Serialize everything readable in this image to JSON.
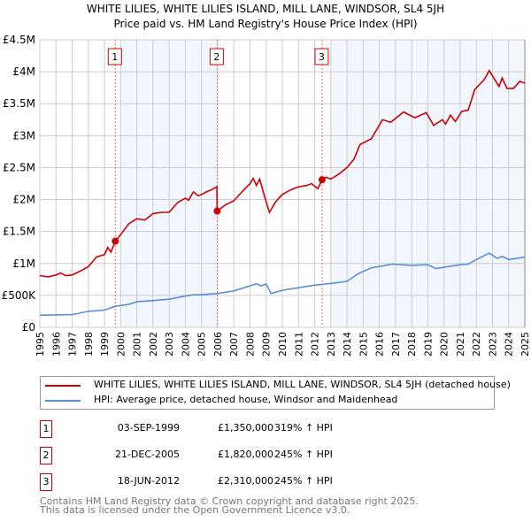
{
  "chart_data": {
    "type": "line",
    "title": "WHITE LILIES, WHITE LILIES ISLAND, MILL LANE, WINDSOR, SL4 5JH",
    "subtitle": "Price paid vs. HM Land Registry's House Price Index (HPI)",
    "xlabel": "",
    "ylabel": "",
    "xlim": [
      1995,
      2025
    ],
    "ylim": [
      0,
      4500000
    ],
    "grid": true,
    "legend_placement": "below",
    "x_ticks": [
      "1995",
      "1996",
      "1997",
      "1998",
      "1999",
      "2000",
      "2001",
      "2002",
      "2003",
      "2004",
      "2005",
      "2006",
      "2007",
      "2008",
      "2009",
      "2010",
      "2011",
      "2012",
      "2013",
      "2014",
      "2015",
      "2016",
      "2017",
      "2018",
      "2019",
      "2020",
      "2021",
      "2022",
      "2023",
      "2024",
      "2025"
    ],
    "y_ticks": [
      {
        "value": 0,
        "label": "£0"
      },
      {
        "value": 500000,
        "label": "£500K"
      },
      {
        "value": 1000000,
        "label": "£1M"
      },
      {
        "value": 1500000,
        "label": "£1.5M"
      },
      {
        "value": 2000000,
        "label": "£2M"
      },
      {
        "value": 2500000,
        "label": "£2.5M"
      },
      {
        "value": 3000000,
        "label": "£3M"
      },
      {
        "value": 3500000,
        "label": "£3.5M"
      },
      {
        "value": 4000000,
        "label": "£4M"
      },
      {
        "value": 4500000,
        "label": "£4.5M"
      }
    ],
    "shaded_ranges": [
      [
        2000,
        2006
      ],
      [
        2013,
        2025
      ]
    ],
    "series": [
      {
        "name": "WHITE LILIES, WHITE LILIES ISLAND, MILL LANE, WINDSOR, SL4 5JH (detached house)",
        "color": "#cc0000",
        "x": [
          1995,
          1995.5,
          1996,
          1996.3,
          1996.6,
          1997,
          1997.5,
          1998,
          1998.5,
          1999,
          1999.2,
          1999.4,
          1999.67,
          2000,
          2000.5,
          2001,
          2001.5,
          2002,
          2002.5,
          2003,
          2003.5,
          2004,
          2004.2,
          2004.5,
          2004.8,
          2005,
          2005.3,
          2005.6,
          2005.95,
          2005.97,
          2006.5,
          2007,
          2007.5,
          2008,
          2008.2,
          2008.4,
          2008.6,
          2008.9,
          2009.2,
          2009.6,
          2010,
          2010.5,
          2011,
          2011.5,
          2011.8,
          2012.2,
          2012.46,
          2012.7,
          2013,
          2013.5,
          2014,
          2014.43,
          2014.8,
          2015.5,
          2016.2,
          2016.7,
          2017.5,
          2018.2,
          2018.9,
          2019.36,
          2019.9,
          2020.1,
          2020.4,
          2020.7,
          2021.1,
          2021.5,
          2021.9,
          2022.5,
          2022.8,
          2023.4,
          2023.6,
          2023.9,
          2024.3,
          2024.7,
          2025
        ],
        "y": [
          810000,
          790000,
          820000,
          850000,
          810000,
          820000,
          880000,
          950000,
          1100000,
          1140000,
          1250000,
          1180000,
          1350000,
          1450000,
          1620000,
          1700000,
          1680000,
          1780000,
          1800000,
          1800000,
          1950000,
          2020000,
          1990000,
          2120000,
          2060000,
          2080000,
          2120000,
          2150000,
          2200000,
          1820000,
          1920000,
          1980000,
          2120000,
          2250000,
          2330000,
          2220000,
          2320000,
          2050000,
          1800000,
          1970000,
          2080000,
          2150000,
          2200000,
          2220000,
          2250000,
          2170000,
          2310000,
          2350000,
          2320000,
          2400000,
          2500000,
          2630000,
          2860000,
          2950000,
          3250000,
          3210000,
          3370000,
          3280000,
          3360000,
          3160000,
          3250000,
          3180000,
          3320000,
          3220000,
          3380000,
          3400000,
          3720000,
          3880000,
          4020000,
          3770000,
          3900000,
          3740000,
          3740000,
          3850000,
          3820000
        ]
      },
      {
        "name": "HPI: Average price, detached house, Windsor and Maidenhead",
        "color": "#5b8fd4",
        "x": [
          1995,
          1997,
          1998,
          1999,
          1999.67,
          2000.5,
          2001,
          2002,
          2003,
          2004,
          2004.5,
          2005,
          2006,
          2007,
          2008,
          2008.4,
          2008.7,
          2009,
          2009.3,
          2010,
          2011,
          2012,
          2013.1,
          2014,
          2014.7,
          2015.5,
          2016.8,
          2018,
          2019,
          2019.5,
          2020,
          2021,
          2021.5,
          2022,
          2022.8,
          2023.3,
          2023.6,
          2024,
          2025
        ],
        "y": [
          190000,
          200000,
          250000,
          270000,
          330000,
          360000,
          400000,
          420000,
          440000,
          490000,
          510000,
          510000,
          530000,
          570000,
          650000,
          680000,
          650000,
          680000,
          530000,
          580000,
          620000,
          660000,
          690000,
          720000,
          840000,
          930000,
          990000,
          970000,
          980000,
          920000,
          940000,
          980000,
          990000,
          1060000,
          1160000,
          1080000,
          1110000,
          1060000,
          1100000
        ]
      }
    ],
    "sales": [
      {
        "num": "1",
        "x": 1999.67,
        "y": 1350000,
        "date": "03-SEP-1999",
        "price": "£1,350,000",
        "hpi": "319% ↑ HPI"
      },
      {
        "num": "2",
        "x": 2005.97,
        "y": 1820000,
        "date": "21-DEC-2005",
        "price": "£1,820,000",
        "hpi": "245% ↑ HPI"
      },
      {
        "num": "3",
        "x": 2012.46,
        "y": 2310000,
        "date": "18-JUN-2012",
        "price": "£2,310,000",
        "hpi": "245% ↑ HPI"
      }
    ]
  },
  "footer": {
    "line1": "Contains HM Land Registry data © Crown copyright and database right 2025.",
    "line2": "This data is licensed under the Open Government Licence v3.0."
  }
}
